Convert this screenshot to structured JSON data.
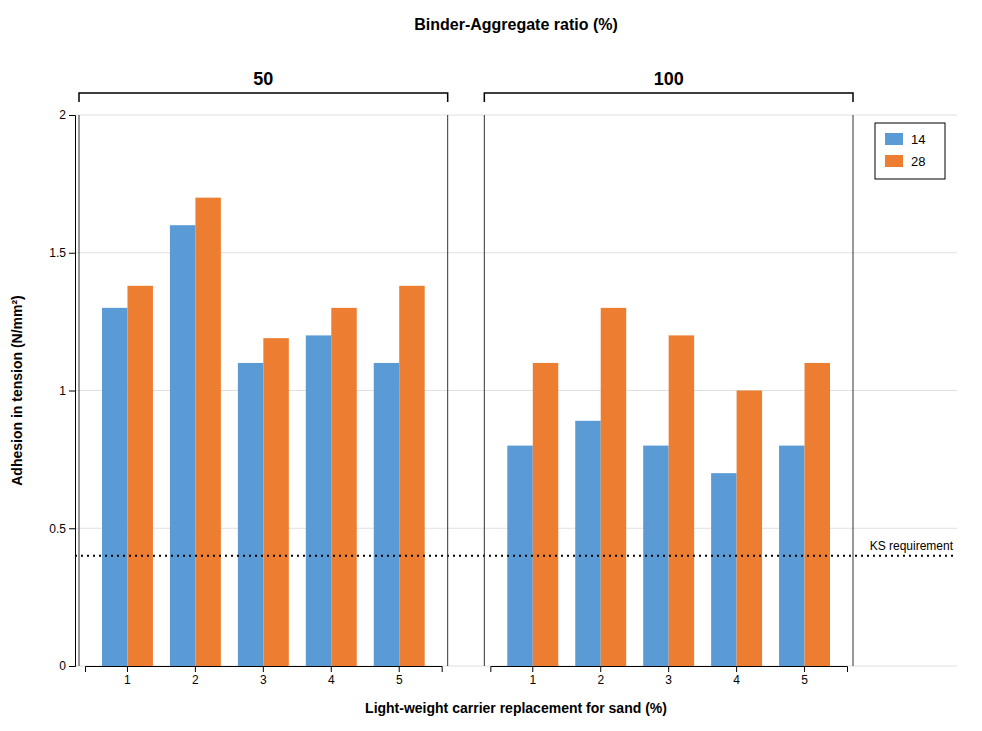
{
  "chart_data": {
    "type": "bar",
    "title": "Binder-Aggregate ratio (%)",
    "xlabel": "Light-weight carrier replacement for sand (%)",
    "ylabel": "Adhesion in tension (N/mm²)",
    "categories": [
      "1",
      "2",
      "3",
      "4",
      "5",
      "1",
      "2",
      "3",
      "4",
      "5"
    ],
    "groups": [
      "50",
      "50",
      "50",
      "50",
      "50",
      "100",
      "100",
      "100",
      "100",
      "100"
    ],
    "series": [
      {
        "name": "14",
        "color": "#5B9BD5",
        "values": [
          1.3,
          1.6,
          1.1,
          1.2,
          1.1,
          0.8,
          0.89,
          0.8,
          0.7,
          0.8
        ]
      },
      {
        "name": "28",
        "color": "#ED7D31",
        "values": [
          1.38,
          1.7,
          1.19,
          1.3,
          1.38,
          1.1,
          1.3,
          1.2,
          1.0,
          1.1
        ]
      }
    ],
    "annotations": [
      {
        "text": "KS requirement",
        "y": 0.4
      }
    ],
    "ylim": [
      0,
      2.0
    ],
    "yticks": [
      0,
      0.5,
      1.0,
      1.5,
      2.0
    ],
    "grid": true,
    "legend": "upper right"
  }
}
